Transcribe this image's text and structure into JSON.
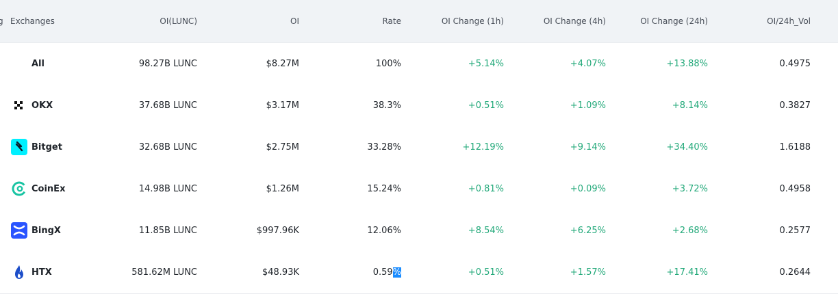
{
  "table": {
    "columns": {
      "rank_fragment": "g",
      "exchanges": "Exchanges",
      "oi_lunc": "OI(LUNC)",
      "oi": "OI",
      "rate": "Rate",
      "ch1h": "OI Change (1h)",
      "ch4h": "OI Change (4h)",
      "ch24h": "OI Change (24h)",
      "vol": "OI/24h_Vol"
    },
    "rows": [
      {
        "exchange": "All",
        "icon": "none",
        "oi_lunc": "98.27B LUNC",
        "oi": "$8.27M",
        "rate": "100%",
        "ch1h": "+5.14%",
        "ch4h": "+4.07%",
        "ch24h": "+13.88%",
        "vol": "0.4975"
      },
      {
        "exchange": "OKX",
        "icon": "okx-logo-icon",
        "oi_lunc": "37.68B LUNC",
        "oi": "$3.17M",
        "rate": "38.3%",
        "ch1h": "+0.51%",
        "ch4h": "+1.09%",
        "ch24h": "+8.14%",
        "vol": "0.3827"
      },
      {
        "exchange": "Bitget",
        "icon": "bitget-logo-icon",
        "oi_lunc": "32.68B LUNC",
        "oi": "$2.75M",
        "rate": "33.28%",
        "ch1h": "+12.19%",
        "ch4h": "+9.14%",
        "ch24h": "+34.40%",
        "vol": "1.6188"
      },
      {
        "exchange": "CoinEx",
        "icon": "coinex-logo-icon",
        "oi_lunc": "14.98B LUNC",
        "oi": "$1.26M",
        "rate": "15.24%",
        "ch1h": "+0.81%",
        "ch4h": "+0.09%",
        "ch24h": "+3.72%",
        "vol": "0.4958"
      },
      {
        "exchange": "BingX",
        "icon": "bingx-logo-icon",
        "oi_lunc": "11.85B LUNC",
        "oi": "$997.96K",
        "rate": "12.06%",
        "ch1h": "+8.54%",
        "ch4h": "+6.25%",
        "ch24h": "+2.68%",
        "vol": "0.2577"
      },
      {
        "exchange": "HTX",
        "icon": "htx-logo-icon",
        "oi_lunc": "581.62M LUNC",
        "oi": "$48.93K",
        "rate_main": "0.59",
        "rate_selected": "%",
        "ch1h": "+0.51%",
        "ch4h": "+1.57%",
        "ch24h": "+17.41%",
        "vol": "0.2644"
      }
    ]
  },
  "colors": {
    "positive": "#23a97a",
    "header_bg": "#f0f3f6",
    "selection": "#1a8cff",
    "bitget": "#00f0ff",
    "coinex": "#19c4a3",
    "bingx": "#2a54ff",
    "htx": "#1d4ec9"
  }
}
